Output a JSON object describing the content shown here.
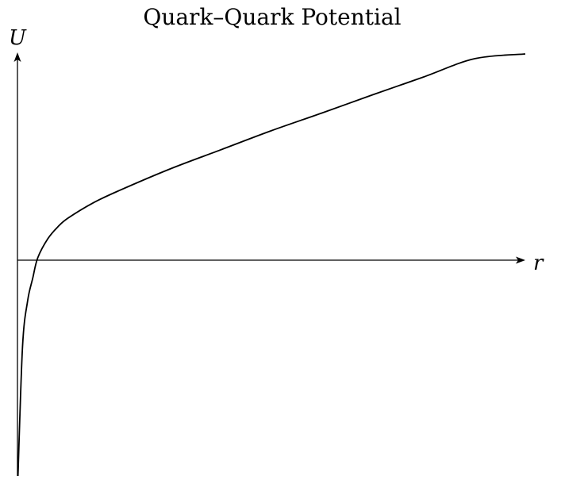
{
  "chart_data": {
    "type": "line",
    "title": "Quark–Quark Potential",
    "xlabel": "r",
    "ylabel": "U",
    "grid": false,
    "xlim": [
      0,
      10
    ],
    "ylim": [
      -4.5,
      4.3
    ],
    "series": [
      {
        "values": [
          {
            "x": 0.01,
            "y": -4.5
          },
          {
            "x": 0.1,
            "y": -1.8
          },
          {
            "x": 0.2,
            "y": -0.85
          },
          {
            "x": 0.3,
            "y": -0.38
          },
          {
            "x": 0.4,
            "y": 0.05
          },
          {
            "x": 0.6,
            "y": 0.45
          },
          {
            "x": 0.8,
            "y": 0.7
          },
          {
            "x": 1.0,
            "y": 0.88
          },
          {
            "x": 1.5,
            "y": 1.2
          },
          {
            "x": 2.0,
            "y": 1.45
          },
          {
            "x": 3.0,
            "y": 1.9
          },
          {
            "x": 4.0,
            "y": 2.3
          },
          {
            "x": 5.0,
            "y": 2.7
          },
          {
            "x": 6.0,
            "y": 3.07
          },
          {
            "x": 7.0,
            "y": 3.45
          },
          {
            "x": 8.0,
            "y": 3.82
          },
          {
            "x": 9.0,
            "y": 4.2
          },
          {
            "x": 10.0,
            "y": 4.3
          }
        ]
      }
    ]
  }
}
